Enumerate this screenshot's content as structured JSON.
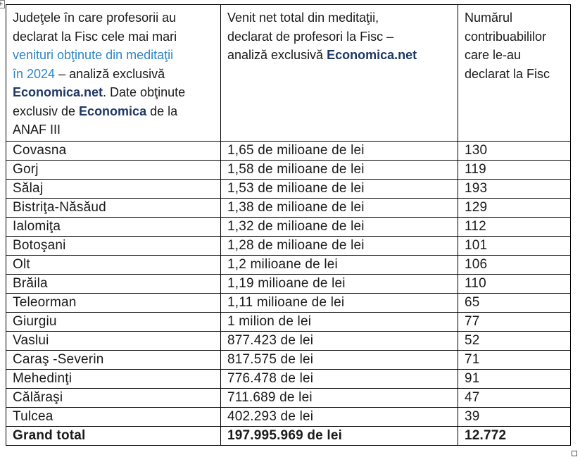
{
  "colors": {
    "link_blue": "#2E86C6",
    "brand_navy": "#1F3864",
    "text": "#1A1A1A",
    "border": "#000000",
    "background": "#FFFFFF"
  },
  "handles": {
    "move_handle_glyph": "+"
  },
  "table": {
    "header_cells": [
      {
        "id": "counties",
        "lines": [
          [
            {
              "t": "Judeţele în care profesorii au",
              "s": "normal"
            }
          ],
          [
            {
              "t": "declarat la Fisc cele mai mari",
              "s": "normal"
            }
          ],
          [
            {
              "t": "venituri obţinute din meditaţii",
              "s": "link"
            }
          ],
          [
            {
              "t": "în 2024",
              "s": "link"
            },
            {
              "t": " – analiză exclusivă",
              "s": "normal"
            }
          ],
          [
            {
              "t": "Economica.net",
              "s": "brand"
            },
            {
              "t": ". Date obţinute",
              "s": "normal"
            }
          ],
          [
            {
              "t": "exclusiv de ",
              "s": "normal"
            },
            {
              "t": "Economica",
              "s": "brand"
            },
            {
              "t": " de la",
              "s": "normal"
            }
          ],
          [
            {
              "t": "ANAF III",
              "s": "normal"
            }
          ]
        ]
      },
      {
        "id": "income",
        "lines": [
          [
            {
              "t": "Venit net total din meditaţii,",
              "s": "normal"
            }
          ],
          [
            {
              "t": "declarat de profesori la Fisc –",
              "s": "normal"
            }
          ],
          [
            {
              "t": "analiză exclusivă ",
              "s": "normal"
            },
            {
              "t": "Economica.net",
              "s": "brand"
            }
          ]
        ]
      },
      {
        "id": "taxpayers",
        "lines": [
          [
            {
              "t": "Numărul",
              "s": "normal"
            }
          ],
          [
            {
              "t": "contribuabililor",
              "s": "normal"
            }
          ],
          [
            {
              "t": "care le-au",
              "s": "normal"
            }
          ],
          [
            {
              "t": "declarat la Fisc",
              "s": "normal"
            }
          ]
        ]
      }
    ],
    "rows": [
      {
        "county": "Covasna",
        "income": "1,65 de milioane de lei",
        "taxpayers": "130",
        "total": false
      },
      {
        "county": "Gorj",
        "income": "1,58 de milioane de lei",
        "taxpayers": "119",
        "total": false
      },
      {
        "county": "Sălaj",
        "income": "1,53 de milioane de lei",
        "taxpayers": "193",
        "total": false
      },
      {
        "county": "Bistriţa-Năsăud",
        "income": "1,38 de milioane de lei",
        "taxpayers": "129",
        "total": false
      },
      {
        "county": "Ialomiţa",
        "income": "1,32 de milioane de lei",
        "taxpayers": "112",
        "total": false
      },
      {
        "county": "Botoşani",
        "income": "1,28 de milioane de lei",
        "taxpayers": "101",
        "total": false
      },
      {
        "county": "Olt",
        "income": "1,2 milioane de lei",
        "taxpayers": "106",
        "total": false
      },
      {
        "county": "Brăila",
        "income": "1,19 milioane de lei",
        "taxpayers": "110",
        "total": false
      },
      {
        "county": "Teleorman",
        "income": "1,11 milioane de lei",
        "taxpayers": "65",
        "total": false
      },
      {
        "county": "Giurgiu",
        "income": "1 milion de lei",
        "taxpayers": "77",
        "total": false
      },
      {
        "county": "Vaslui",
        "income": "877.423 de lei",
        "taxpayers": "52",
        "total": false
      },
      {
        "county": "Caraş -Severin",
        "income": "817.575 de lei",
        "taxpayers": "71",
        "total": false
      },
      {
        "county": "Mehedinţi",
        "income": "776.478 de lei",
        "taxpayers": "91",
        "total": false
      },
      {
        "county": "Călăraşi",
        "income": "711.689 de lei",
        "taxpayers": "47",
        "total": false
      },
      {
        "county": "Tulcea",
        "income": "402.293 de lei",
        "taxpayers": "39",
        "total": false
      },
      {
        "county": "Grand total",
        "income": "197.995.969 de lei",
        "taxpayers": "12.772",
        "total": true
      }
    ]
  }
}
